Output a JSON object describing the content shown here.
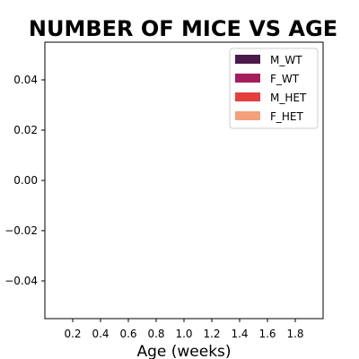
{
  "chart_data": {
    "type": "bar",
    "title": "NUMBER OF MICE VS AGE",
    "xlabel": "Age (weeks)",
    "ylabel": "",
    "xlim": [
      0,
      2
    ],
    "ylim": [
      -0.055,
      0.055
    ],
    "xticks": [
      "0.2",
      "0.4",
      "0.6",
      "0.8",
      "1.0",
      "1.2",
      "1.4",
      "1.6",
      "1.8"
    ],
    "xtick_values": [
      0.2,
      0.4,
      0.6,
      0.8,
      1.0,
      1.2,
      1.4,
      1.6,
      1.8
    ],
    "yticks": [
      "0.04",
      "0.02",
      "0.00",
      "−0.02",
      "−0.04"
    ],
    "ytick_values": [
      0.04,
      0.02,
      0.0,
      -0.02,
      -0.04
    ],
    "grid": false,
    "legend_position": "top-right",
    "series": [
      {
        "name": "M_WT",
        "color": "#4a1a4b",
        "values": []
      },
      {
        "name": "F_WT",
        "color": "#a51d5b",
        "values": []
      },
      {
        "name": "M_HET",
        "color": "#e43e3d",
        "values": []
      },
      {
        "name": "F_HET",
        "color": "#f5a07a",
        "values": []
      }
    ]
  }
}
